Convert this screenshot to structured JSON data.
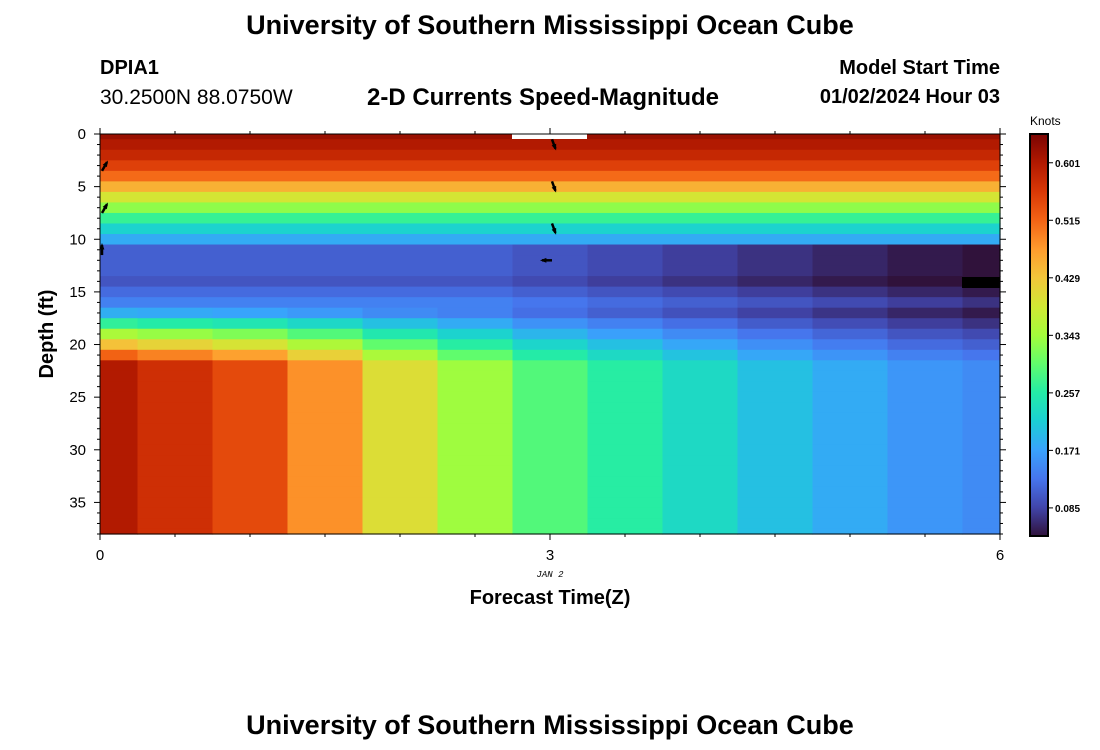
{
  "header": {
    "title": "University of Southern Mississippi Ocean Cube",
    "station_id": "DPIA1",
    "station_coords": "30.2500N  88.0750W",
    "plot_title": "2-D Currents Speed-Magnitude",
    "start_label": "Model Start Time",
    "start_value": "01/02/2024 Hour 03"
  },
  "footer": {
    "title": "University of Southern Mississippi Ocean Cube"
  },
  "chart_data": {
    "type": "heatmap",
    "title": "2-D Currents Speed-Magnitude",
    "xlabel": "Forecast Time(Z)",
    "ylabel": "Depth (ft)",
    "x_date_label": "JAN 2",
    "x_ticks": [
      0,
      3,
      6
    ],
    "y_ticks": [
      0,
      5,
      10,
      15,
      20,
      25,
      30,
      35
    ],
    "xlim": [
      0,
      6
    ],
    "ylim": [
      0,
      38
    ],
    "y_inverted": true,
    "colorbar": {
      "title": "Knots",
      "labels": [
        "0.601",
        "0.515",
        "0.429",
        "0.343",
        "0.257",
        "0.171",
        "0.085"
      ],
      "range": [
        0.043,
        0.644
      ],
      "colors": [
        "#30123b",
        "#4145ab",
        "#4675ed",
        "#39a2fc",
        "#1bcfd4",
        "#24eca6",
        "#61fc6c",
        "#a4fc3b",
        "#d1e834",
        "#f3c63a",
        "#fe9b2d",
        "#f36315",
        "#d93806",
        "#b11901",
        "#7a0402"
      ]
    },
    "time_columns": [
      0.0,
      0.5,
      1.0,
      1.5,
      2.0,
      2.5,
      3.0,
      3.5,
      4.0,
      4.5,
      5.0,
      5.5,
      6.0
    ],
    "depth_rows": [
      0,
      1,
      2,
      3,
      4,
      5,
      6,
      7,
      8,
      9,
      10,
      11,
      12,
      13,
      14,
      15,
      16,
      17,
      18,
      19,
      20,
      21,
      22,
      23,
      24,
      25,
      26,
      27,
      28,
      29,
      30,
      31,
      32,
      33,
      34,
      35,
      36,
      37,
      38
    ],
    "surface_profile_speed": [
      0.62,
      0.6,
      0.58,
      0.55,
      0.51,
      0.45,
      0.39,
      0.33,
      0.27,
      0.22,
      0.18,
      0.15,
      0.13,
      0.11,
      0.1,
      0.1,
      0.15,
      0.24,
      0.33,
      0.42,
      0.5,
      0.55,
      0.58,
      0.6,
      0.61,
      0.62,
      0.62,
      0.61,
      0.6,
      0.6,
      0.59,
      0.59,
      0.58,
      0.58,
      0.57,
      0.57,
      0.56,
      0.56,
      0.56
    ],
    "bottom_speed_by_time": [
      0.6,
      0.57,
      0.54,
      0.48,
      0.4,
      0.34,
      0.29,
      0.26,
      0.23,
      0.2,
      0.18,
      0.16,
      0.15
    ],
    "mid_speed_by_time": [
      0.1,
      0.1,
      0.1,
      0.1,
      0.1,
      0.1,
      0.09,
      0.08,
      0.07,
      0.06,
      0.05,
      0.04,
      0.03
    ],
    "vectors": [
      {
        "time": 0,
        "depth": 3.5,
        "dir": "north-east"
      },
      {
        "time": 0,
        "depth": 7.5,
        "dir": "north-east"
      },
      {
        "time": 0,
        "depth": 11.5,
        "dir": "north"
      },
      {
        "time": 3,
        "depth": 0.5,
        "dir": "south-east"
      },
      {
        "time": 3,
        "depth": 4.5,
        "dir": "south-east"
      },
      {
        "time": 3,
        "depth": 8.5,
        "dir": "south-east"
      },
      {
        "time": 3,
        "depth": 12,
        "dir": "west"
      }
    ]
  }
}
